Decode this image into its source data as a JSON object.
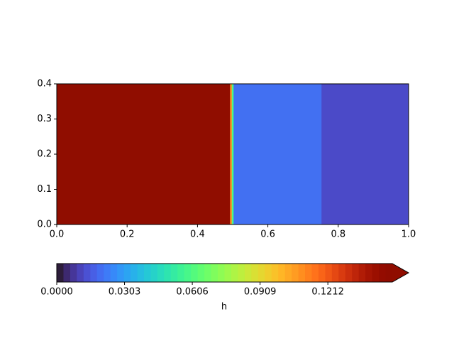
{
  "chart_data": {
    "type": "heatmap",
    "x": [
      0.0,
      0.49,
      0.495,
      0.5,
      0.505,
      1.0
    ],
    "values": [
      0.15,
      0.15,
      0.11,
      0.06,
      0.02,
      0.012
    ],
    "xlim": [
      0,
      1
    ],
    "ylim": [
      0,
      0.4
    ],
    "xticks": [
      {
        "value": 0,
        "label": "0.0"
      },
      0.2,
      0.4,
      0.6,
      0.8,
      {
        "value": 1,
        "label": "1.0"
      }
    ],
    "yticks": [
      {
        "value": 0,
        "label": "0.0"
      },
      0.1,
      0.2,
      0.3,
      0.4
    ],
    "colormap": "turbo",
    "clim": [
      0,
      0.15
    ],
    "colorbar_extend": "max",
    "colorbar_ticks": [
      {
        "value": 0,
        "label": "0.0000"
      },
      {
        "value": 0.0303,
        "label": "0.0303"
      },
      {
        "value": 0.0606,
        "label": "0.0606"
      },
      {
        "value": 0.0909,
        "label": "0.0909"
      },
      {
        "value": 0.1212,
        "label": "0.1212"
      }
    ],
    "colorbar_label": "h"
  }
}
